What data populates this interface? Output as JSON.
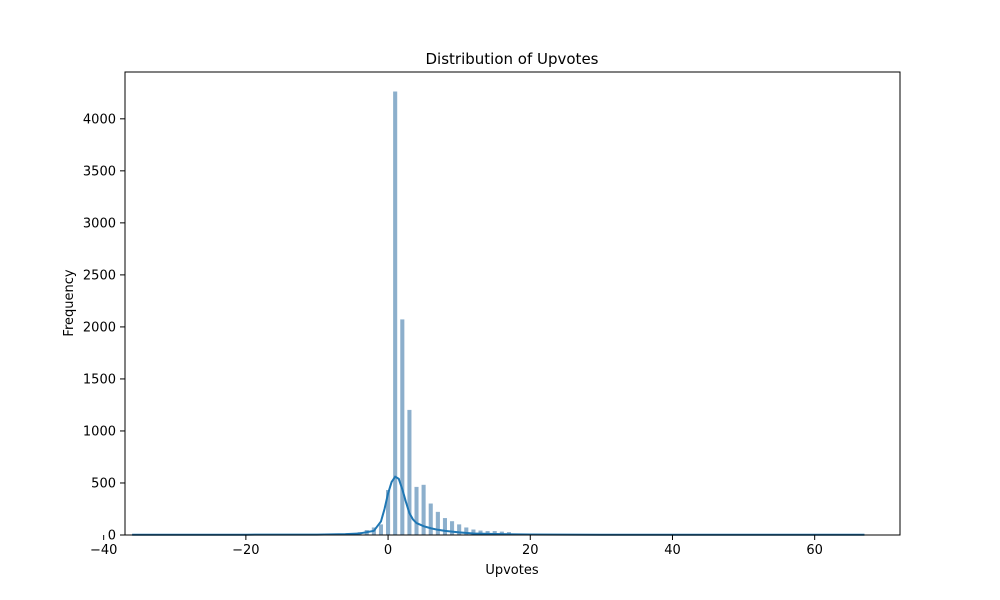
{
  "chart_data": {
    "type": "histogram",
    "title": "Distribution of Upvotes",
    "xlabel": "Upvotes",
    "ylabel": "Frequency",
    "xlim": [
      -37,
      72
    ],
    "ylim": [
      0,
      4450
    ],
    "xticks": [
      -40,
      -20,
      0,
      20,
      40,
      60
    ],
    "xtick_labels": [
      "−40",
      "−20",
      "0",
      "20",
      "40",
      "60"
    ],
    "yticks": [
      0,
      500,
      1000,
      1500,
      2000,
      2500,
      3000,
      3500,
      4000
    ],
    "ytick_labels": [
      "0",
      "500",
      "1000",
      "1500",
      "2000",
      "2500",
      "3000",
      "3500",
      "4000"
    ],
    "grid": false,
    "bar_color": "#8cafcc",
    "kde_color": "#1f77b4",
    "bars": [
      {
        "x": -5,
        "count": 15
      },
      {
        "x": -4,
        "count": 25
      },
      {
        "x": -3,
        "count": 45
      },
      {
        "x": -2,
        "count": 70
      },
      {
        "x": -1,
        "count": 100
      },
      {
        "x": 0,
        "count": 430
      },
      {
        "x": 1,
        "count": 4260
      },
      {
        "x": 2,
        "count": 2070
      },
      {
        "x": 3,
        "count": 1200
      },
      {
        "x": 4,
        "count": 460
      },
      {
        "x": 5,
        "count": 480
      },
      {
        "x": 6,
        "count": 300
      },
      {
        "x": 7,
        "count": 220
      },
      {
        "x": 8,
        "count": 160
      },
      {
        "x": 9,
        "count": 130
      },
      {
        "x": 10,
        "count": 100
      },
      {
        "x": 11,
        "count": 70
      },
      {
        "x": 12,
        "count": 50
      },
      {
        "x": 13,
        "count": 40
      },
      {
        "x": 14,
        "count": 35
      },
      {
        "x": 15,
        "count": 35
      },
      {
        "x": 16,
        "count": 30
      },
      {
        "x": 17,
        "count": 25
      },
      {
        "x": 18,
        "count": 12
      },
      {
        "x": 19,
        "count": 8
      },
      {
        "x": 20,
        "count": 5
      }
    ],
    "kde": [
      {
        "x": -36,
        "y": 2
      },
      {
        "x": -20,
        "y": 3
      },
      {
        "x": -10,
        "y": 4
      },
      {
        "x": -6,
        "y": 8
      },
      {
        "x": -4,
        "y": 15
      },
      {
        "x": -2,
        "y": 40
      },
      {
        "x": -1,
        "y": 130
      },
      {
        "x": -0.5,
        "y": 250
      },
      {
        "x": 0,
        "y": 400
      },
      {
        "x": 0.5,
        "y": 510
      },
      {
        "x": 1,
        "y": 560
      },
      {
        "x": 1.5,
        "y": 540
      },
      {
        "x": 2,
        "y": 440
      },
      {
        "x": 2.5,
        "y": 320
      },
      {
        "x": 3,
        "y": 210
      },
      {
        "x": 3.5,
        "y": 150
      },
      {
        "x": 4,
        "y": 115
      },
      {
        "x": 5,
        "y": 85
      },
      {
        "x": 6,
        "y": 65
      },
      {
        "x": 7,
        "y": 50
      },
      {
        "x": 8,
        "y": 40
      },
      {
        "x": 10,
        "y": 25
      },
      {
        "x": 12,
        "y": 15
      },
      {
        "x": 15,
        "y": 9
      },
      {
        "x": 20,
        "y": 5
      },
      {
        "x": 30,
        "y": 3
      },
      {
        "x": 45,
        "y": 2
      },
      {
        "x": 67,
        "y": 2
      }
    ]
  }
}
